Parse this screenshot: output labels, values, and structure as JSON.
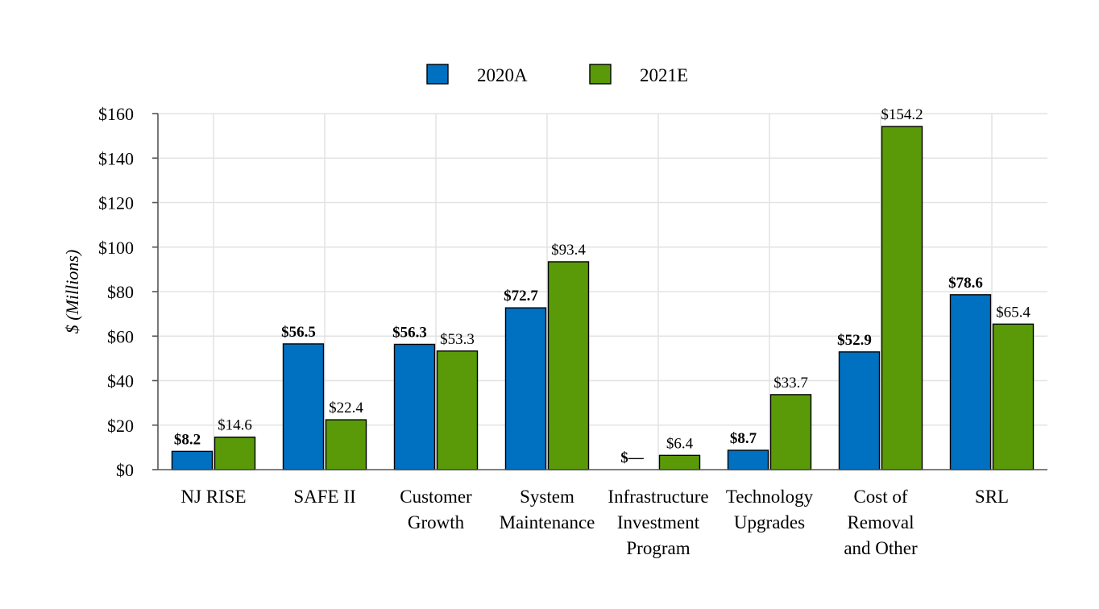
{
  "chart_data": {
    "type": "bar",
    "title": "",
    "xlabel": "",
    "ylabel": "$ (Millions)",
    "ylim": [
      0,
      160
    ],
    "yticks": [
      0,
      20,
      40,
      60,
      80,
      100,
      120,
      140,
      160
    ],
    "ytick_labels": [
      "$0",
      "$20",
      "$40",
      "$60",
      "$80",
      "$100",
      "$120",
      "$140",
      "$160"
    ],
    "grid": true,
    "legend_position": "top-center",
    "categories": [
      [
        "NJ RISE"
      ],
      [
        "SAFE II"
      ],
      [
        "Customer",
        "Growth"
      ],
      [
        "System",
        "Maintenance"
      ],
      [
        "Infrastructure",
        "Investment",
        "Program"
      ],
      [
        "Technology",
        "Upgrades"
      ],
      [
        "Cost of",
        "Removal",
        "and Other"
      ],
      [
        "SRL"
      ]
    ],
    "series": [
      {
        "name": "2020A",
        "color": "#0070c0",
        "values": [
          8.2,
          56.5,
          56.3,
          72.7,
          0,
          8.7,
          52.9,
          78.6
        ],
        "labels": [
          "$8.2",
          "$56.5",
          "$56.3",
          "$72.7",
          "$—",
          "$8.7",
          "$52.9",
          "$78.6"
        ],
        "bold_labels": true
      },
      {
        "name": "2021E",
        "color": "#5a9a08",
        "values": [
          14.6,
          22.4,
          53.3,
          93.4,
          6.4,
          33.7,
          154.2,
          65.4
        ],
        "labels": [
          "$14.6",
          "$22.4",
          "$53.3",
          "$93.4",
          "$6.4",
          "$33.7",
          "$154.2",
          "$65.4"
        ],
        "bold_labels": false
      }
    ]
  }
}
